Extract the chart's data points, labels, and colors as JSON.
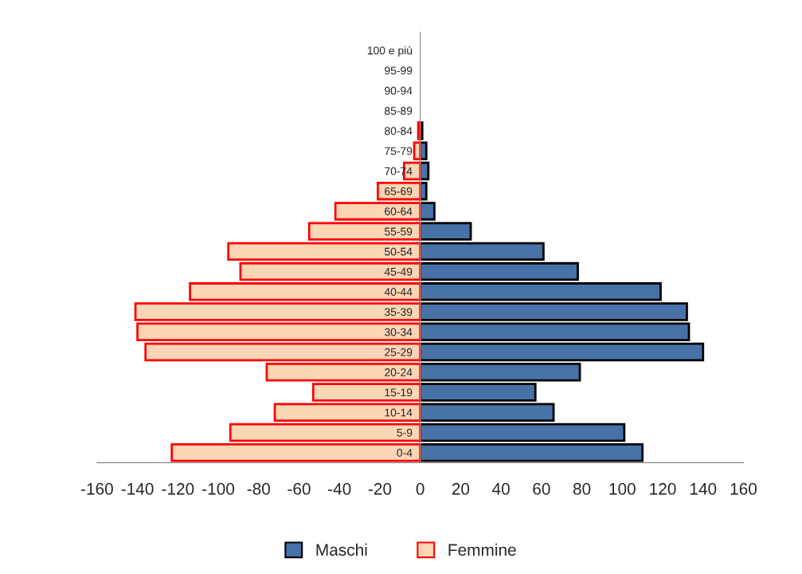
{
  "chart_data": {
    "type": "bar",
    "orientation": "horizontal",
    "stacked": true,
    "categories": [
      "100 e più",
      "95-99",
      "90-94",
      "85-89",
      "80-84",
      "75-79",
      "70-74",
      "65-69",
      "60-64",
      "55-59",
      "50-54",
      "45-49",
      "40-44",
      "35-39",
      "30-34",
      "25-29",
      "20-24",
      "15-19",
      "10-14",
      "5-9",
      "0-4"
    ],
    "series": [
      {
        "name": "Maschi",
        "color": "#4672a8",
        "values": [
          0,
          0,
          0,
          0,
          1,
          3,
          4,
          3,
          7,
          25,
          61,
          78,
          119,
          132,
          133,
          140,
          79,
          57,
          66,
          101,
          110
        ]
      },
      {
        "name": "Femmine",
        "color": "#fcd5b5",
        "values": [
          0,
          0,
          0,
          0,
          -1,
          -3,
          -8,
          -21,
          -42,
          -55,
          -95,
          -89,
          -114,
          -141,
          -140,
          -136,
          -76,
          -53,
          -72,
          -94,
          -123
        ]
      }
    ],
    "xlim": [
      -160,
      160
    ],
    "xticks": [
      -160,
      -140,
      -120,
      -100,
      -80,
      -60,
      -40,
      -20,
      0,
      20,
      40,
      60,
      80,
      100,
      120,
      140,
      160
    ],
    "grid": false,
    "legend": "bottom"
  }
}
